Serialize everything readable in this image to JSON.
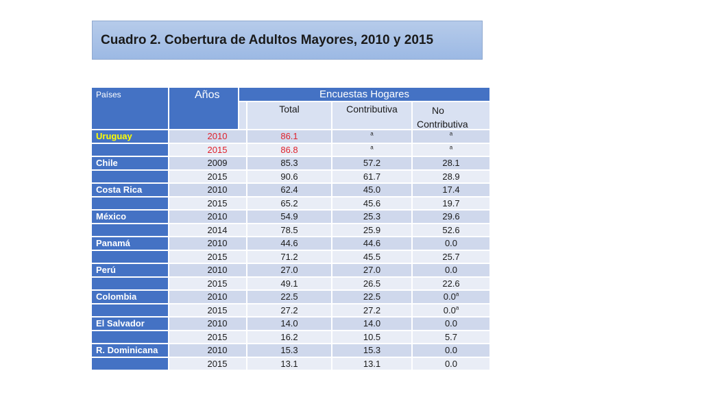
{
  "title": "Cuadro 2. Cobertura de Adultos Mayores, 2010 y 2015",
  "headers": {
    "paises": "Países",
    "anos": "Años",
    "encuestas": "Encuestas Hogares",
    "total": "Total",
    "contributiva": "Contributiva",
    "no_contributiva_1": "No",
    "no_contributiva_2": "Contributiva"
  },
  "footnote_mark": "a",
  "colors": {
    "header_blue": "#4472c4",
    "highlight_red": "#e0202a",
    "highlight_yellow": "#ffff00"
  },
  "rows": [
    {
      "country": "Uruguay",
      "year": "2010",
      "total": "86.1",
      "contributiva": "",
      "no_contributiva": "",
      "contr_note": "a",
      "nocon_note": "a"
    },
    {
      "country": "",
      "year": "2015",
      "total": "86.8",
      "contributiva": "",
      "no_contributiva": "",
      "contr_note": "a",
      "nocon_note": "a"
    },
    {
      "country": "Chile",
      "year": "2009",
      "total": "85.3",
      "contributiva": "57.2",
      "no_contributiva": "28.1",
      "contr_note": "",
      "nocon_note": ""
    },
    {
      "country": "",
      "year": "2015",
      "total": "90.6",
      "contributiva": "61.7",
      "no_contributiva": "28.9",
      "contr_note": "",
      "nocon_note": ""
    },
    {
      "country": "Costa Rica",
      "year": "2010",
      "total": "62.4",
      "contributiva": "45.0",
      "no_contributiva": "17.4",
      "contr_note": "",
      "nocon_note": ""
    },
    {
      "country": "",
      "year": "2015",
      "total": "65.2",
      "contributiva": "45.6",
      "no_contributiva": "19.7",
      "contr_note": "",
      "nocon_note": ""
    },
    {
      "country": "México",
      "year": "2010",
      "total": "54.9",
      "contributiva": "25.3",
      "no_contributiva": "29.6",
      "contr_note": "",
      "nocon_note": ""
    },
    {
      "country": "",
      "year": "2014",
      "total": "78.5",
      "contributiva": "25.9",
      "no_contributiva": "52.6",
      "contr_note": "",
      "nocon_note": ""
    },
    {
      "country": "Panamá",
      "year": "2010",
      "total": "44.6",
      "contributiva": "44.6",
      "no_contributiva": "0.0",
      "contr_note": "",
      "nocon_note": ""
    },
    {
      "country": "",
      "year": "2015",
      "total": "71.2",
      "contributiva": "45.5",
      "no_contributiva": "25.7",
      "contr_note": "",
      "nocon_note": ""
    },
    {
      "country": "Perú",
      "year": "2010",
      "total": "27.0",
      "contributiva": "27.0",
      "no_contributiva": "0.0",
      "contr_note": "",
      "nocon_note": ""
    },
    {
      "country": "",
      "year": "2015",
      "total": "49.1",
      "contributiva": "26.5",
      "no_contributiva": "22.6",
      "contr_note": "",
      "nocon_note": ""
    },
    {
      "country": "Colombia",
      "year": "2010",
      "total": "22.5",
      "contributiva": "22.5",
      "no_contributiva": "0.0",
      "contr_note": "",
      "nocon_note": "a"
    },
    {
      "country": "",
      "year": "2015",
      "total": "27.2",
      "contributiva": "27.2",
      "no_contributiva": "0.0",
      "contr_note": "",
      "nocon_note": "a"
    },
    {
      "country": "El Salvador",
      "year": "2010",
      "total": "14.0",
      "contributiva": "14.0",
      "no_contributiva": "0.0",
      "contr_note": "",
      "nocon_note": ""
    },
    {
      "country": "",
      "year": "2015",
      "total": "16.2",
      "contributiva": "10.5",
      "no_contributiva": "5.7",
      "contr_note": "",
      "nocon_note": ""
    },
    {
      "country": "R. Dominicana",
      "year": "2010",
      "total": "15.3",
      "contributiva": "15.3",
      "no_contributiva": "0.0",
      "contr_note": "",
      "nocon_note": ""
    },
    {
      "country": "",
      "year": "2015",
      "total": "13.1",
      "contributiva": "13.1",
      "no_contributiva": "0.0",
      "contr_note": "",
      "nocon_note": ""
    }
  ]
}
